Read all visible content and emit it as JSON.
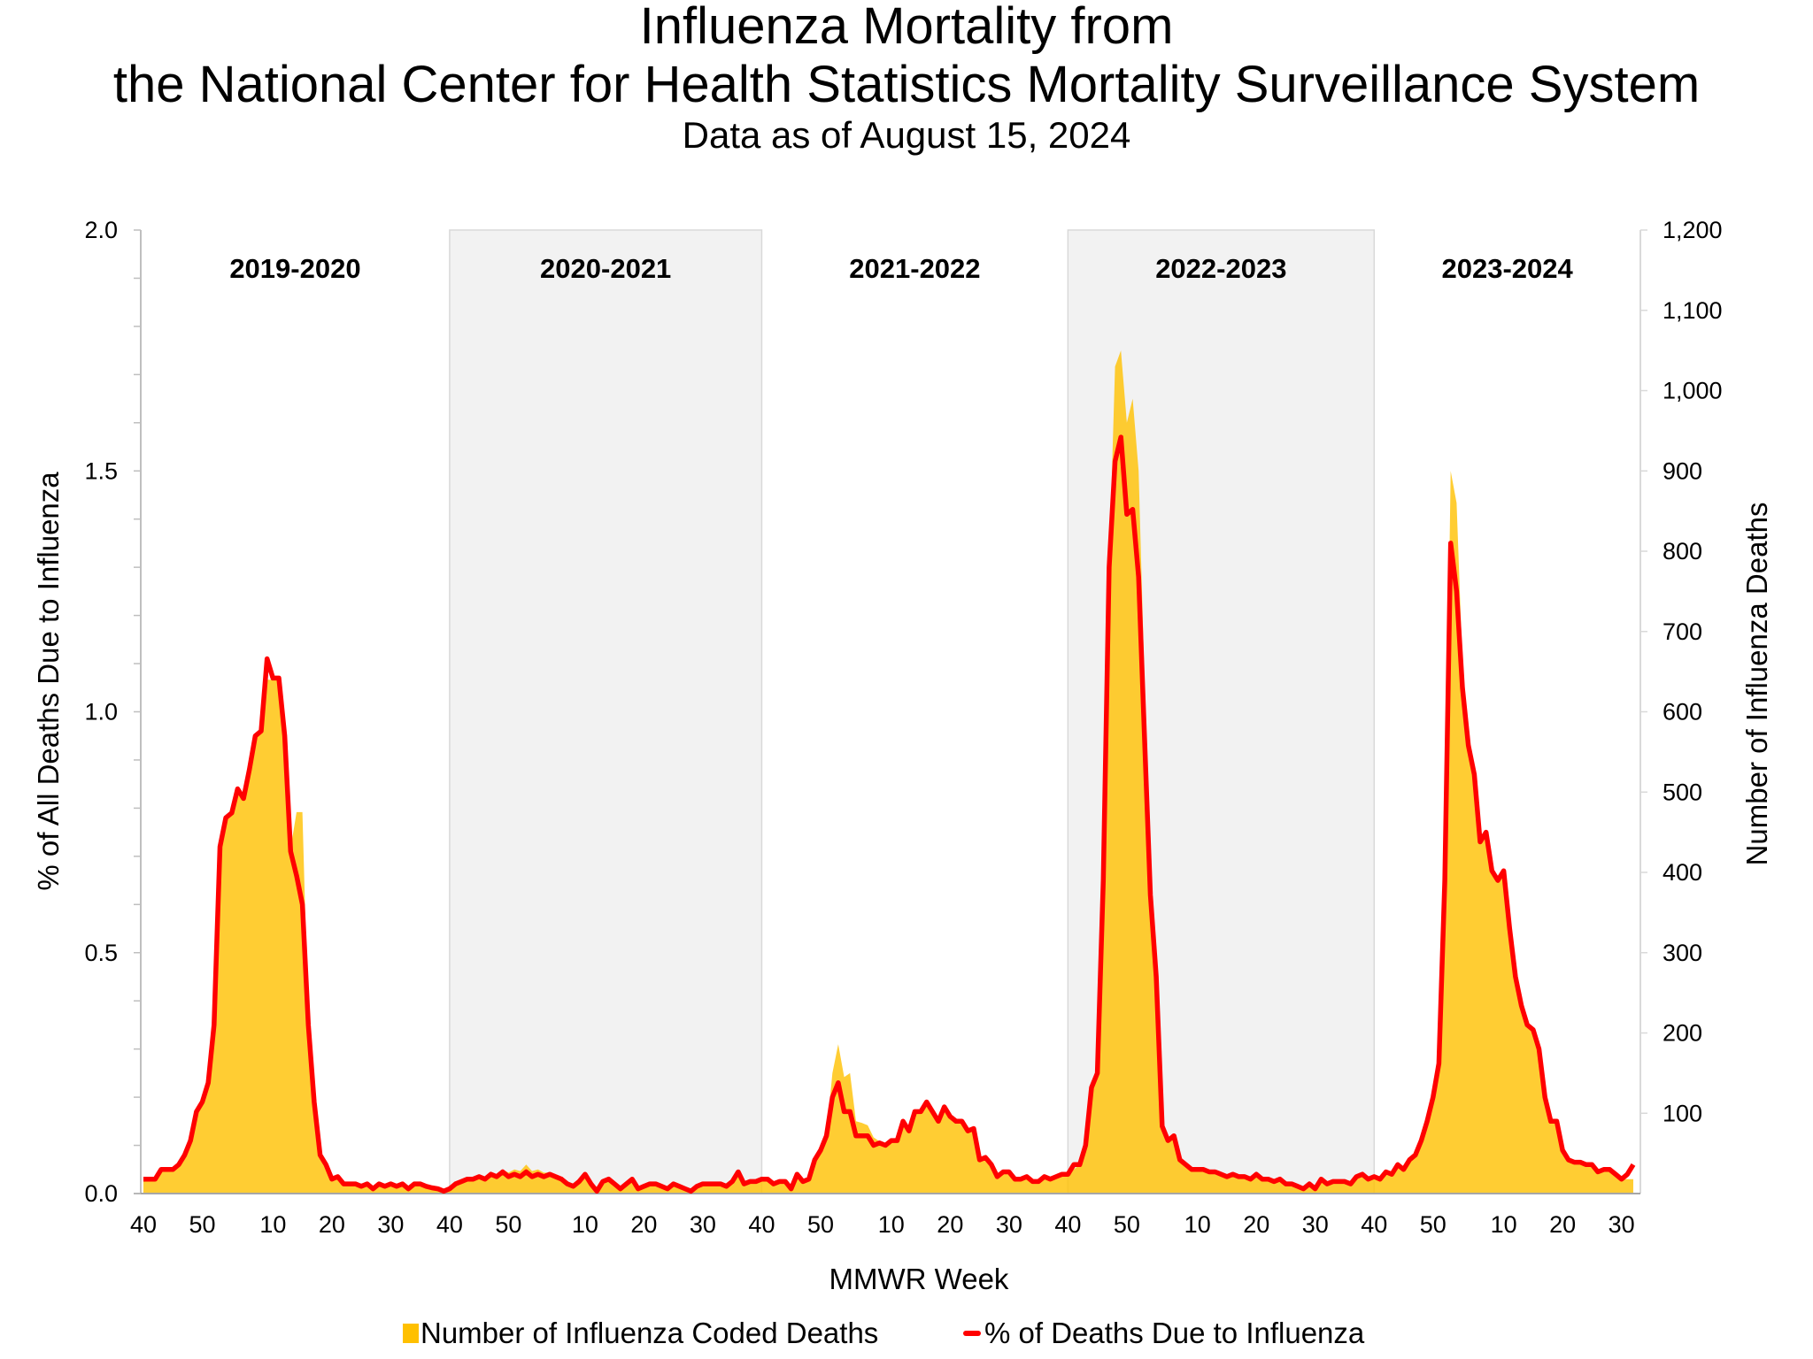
{
  "chart_data": {
    "type": "area+line",
    "title": "Influenza Mortality from",
    "title_line2": "the National Center for Health Statistics Mortality Surveillance System",
    "subtitle": "Data as of August 15, 2024",
    "xlabel": "MMWR Week",
    "ylabel_left": "% of All Deaths Due to Influenza",
    "ylabel_right": "Number of Influenza Deaths",
    "ylim_left": [
      0,
      2.0
    ],
    "ylim_right": [
      0,
      1200
    ],
    "y_ticks_left": [
      "0.0",
      "0.5",
      "1.0",
      "1.5",
      "2.0"
    ],
    "y_ticks_right": [
      "100",
      "200",
      "300",
      "400",
      "500",
      "600",
      "700",
      "800",
      "900",
      "1,000",
      "1,100",
      "1,200"
    ],
    "x_tick_labels": [
      "40",
      "50",
      "10",
      "20",
      "30",
      "40",
      "50",
      "10",
      "20",
      "30",
      "40",
      "50",
      "10",
      "20",
      "30",
      "40",
      "50",
      "10",
      "20",
      "30",
      "40",
      "50",
      "10",
      "20",
      "30"
    ],
    "grid": false,
    "legend_position": "bottom",
    "legend": [
      "Number of Influenza Coded Deaths",
      "% of Deaths Due to Influenza"
    ],
    "colors": {
      "deaths_area": "#FFC000",
      "percent_line": "#FF0000",
      "shade": "#F2F2F2"
    },
    "seasons": [
      {
        "label": "2019-2020",
        "shaded": false,
        "start_week": 40,
        "weeks_in_start_year": 52,
        "end_week": 39,
        "percent": [
          0.03,
          0.03,
          0.03,
          0.05,
          0.05,
          0.05,
          0.06,
          0.08,
          0.11,
          0.17,
          0.19,
          0.23,
          0.35,
          0.72,
          0.78,
          0.79,
          0.84,
          0.82,
          0.88,
          0.95,
          0.96,
          1.11,
          1.07,
          1.07,
          0.95,
          0.71,
          0.66,
          0.6,
          0.35,
          0.19,
          0.08,
          0.06,
          0.03,
          0.035,
          0.02,
          0.02,
          0.02,
          0.015,
          0.02,
          0.01,
          0.02,
          0.015,
          0.02,
          0.015,
          0.02,
          0.01,
          0.02,
          0.02,
          0.015,
          0.012,
          0.01,
          0.005
        ],
        "deaths": [
          15,
          15,
          18,
          30,
          30,
          30,
          36,
          48,
          66,
          100,
          114,
          138,
          210,
          430,
          470,
          475,
          500,
          490,
          530,
          570,
          580,
          640,
          640,
          640,
          570,
          430,
          475,
          475,
          210,
          115,
          48,
          36,
          18,
          20,
          12,
          12,
          12,
          9,
          12,
          6,
          12,
          9,
          12,
          9,
          12,
          6,
          12,
          12,
          9,
          7,
          6,
          3
        ]
      },
      {
        "label": "2020-2021",
        "shaded": true,
        "start_week": 40,
        "weeks_in_start_year": 53,
        "end_week": 39,
        "percent": [
          0.01,
          0.02,
          0.025,
          0.03,
          0.03,
          0.035,
          0.03,
          0.04,
          0.035,
          0.045,
          0.035,
          0.04,
          0.035,
          0.045,
          0.035,
          0.04,
          0.035,
          0.04,
          0.035,
          0.03,
          0.02,
          0.015,
          0.025,
          0.04,
          0.02,
          0.005,
          0.025,
          0.03,
          0.02,
          0.01,
          0.02,
          0.03,
          0.01,
          0.015,
          0.02,
          0.02,
          0.015,
          0.01,
          0.02,
          0.015,
          0.01,
          0.005,
          0.015,
          0.02,
          0.02,
          0.02,
          0.02,
          0.015,
          0.025,
          0.045,
          0.02,
          0.025,
          0.025
        ],
        "deaths": [
          6,
          12,
          15,
          18,
          18,
          21,
          20,
          26,
          24,
          30,
          26,
          30,
          28,
          36,
          28,
          30,
          26,
          26,
          22,
          20,
          12,
          9,
          15,
          24,
          12,
          3,
          15,
          18,
          12,
          6,
          12,
          18,
          6,
          9,
          12,
          12,
          9,
          6,
          12,
          9,
          6,
          3,
          9,
          12,
          12,
          12,
          12,
          9,
          15,
          27,
          12,
          15,
          15
        ]
      },
      {
        "label": "2021-2022",
        "shaded": false,
        "start_week": 40,
        "weeks_in_start_year": 52,
        "end_week": 39,
        "percent": [
          0.03,
          0.03,
          0.02,
          0.025,
          0.025,
          0.01,
          0.04,
          0.025,
          0.03,
          0.07,
          0.09,
          0.12,
          0.2,
          0.23,
          0.17,
          0.17,
          0.12,
          0.12,
          0.12,
          0.1,
          0.105,
          0.1,
          0.11,
          0.11,
          0.15,
          0.13,
          0.17,
          0.17,
          0.19,
          0.17,
          0.15,
          0.18,
          0.16,
          0.15,
          0.15,
          0.13,
          0.135,
          0.07,
          0.075,
          0.06,
          0.035,
          0.045,
          0.045,
          0.03,
          0.03,
          0.035,
          0.025,
          0.025,
          0.035,
          0.03,
          0.035,
          0.04
        ],
        "deaths": [
          18,
          18,
          12,
          15,
          15,
          6,
          24,
          15,
          18,
          42,
          54,
          72,
          150,
          186,
          145,
          150,
          90,
          88,
          85,
          70,
          65,
          62,
          66,
          70,
          90,
          80,
          102,
          104,
          114,
          102,
          90,
          108,
          96,
          90,
          90,
          78,
          81,
          42,
          45,
          36,
          21,
          27,
          27,
          18,
          18,
          21,
          15,
          15,
          21,
          18,
          21,
          24
        ]
      },
      {
        "label": "2022-2023",
        "shaded": true,
        "start_week": 40,
        "weeks_in_start_year": 52,
        "end_week": 39,
        "percent": [
          0.04,
          0.06,
          0.06,
          0.1,
          0.22,
          0.25,
          0.65,
          1.3,
          1.52,
          1.57,
          1.41,
          1.42,
          1.28,
          0.95,
          0.62,
          0.45,
          0.14,
          0.11,
          0.12,
          0.07,
          0.06,
          0.05,
          0.05,
          0.05,
          0.045,
          0.045,
          0.04,
          0.035,
          0.04,
          0.035,
          0.035,
          0.03,
          0.04,
          0.03,
          0.03,
          0.025,
          0.03,
          0.02,
          0.02,
          0.015,
          0.01,
          0.02,
          0.01,
          0.03,
          0.02,
          0.025,
          0.025,
          0.025,
          0.02,
          0.035,
          0.04,
          0.03
        ],
        "deaths": [
          24,
          30,
          36,
          60,
          130,
          150,
          400,
          780,
          1030,
          1050,
          960,
          990,
          900,
          640,
          380,
          270,
          84,
          66,
          72,
          42,
          36,
          30,
          30,
          30,
          27,
          27,
          24,
          21,
          24,
          21,
          21,
          18,
          24,
          18,
          18,
          15,
          18,
          12,
          12,
          9,
          6,
          12,
          6,
          18,
          12,
          15,
          15,
          15,
          12,
          21,
          24,
          18
        ]
      },
      {
        "label": "2023-2024",
        "shaded": false,
        "start_week": 40,
        "weeks_in_start_year": 52,
        "end_week": 32,
        "percent": [
          0.035,
          0.03,
          0.045,
          0.04,
          0.06,
          0.05,
          0.07,
          0.08,
          0.11,
          0.15,
          0.2,
          0.27,
          0.65,
          1.35,
          1.25,
          1.05,
          0.93,
          0.87,
          0.73,
          0.75,
          0.67,
          0.65,
          0.67,
          0.55,
          0.45,
          0.39,
          0.35,
          0.34,
          0.3,
          0.2,
          0.15,
          0.15,
          0.09,
          0.07,
          0.065,
          0.065,
          0.06,
          0.06,
          0.045,
          0.05,
          0.05,
          0.04,
          0.03,
          0.04,
          0.06
        ],
        "deaths": [
          21,
          18,
          27,
          24,
          36,
          30,
          42,
          48,
          66,
          90,
          120,
          162,
          390,
          900,
          860,
          660,
          560,
          520,
          440,
          450,
          400,
          390,
          400,
          330,
          270,
          234,
          210,
          204,
          180,
          120,
          90,
          90,
          54,
          42,
          39,
          39,
          36,
          36,
          27,
          30,
          30,
          24,
          18,
          18,
          18
        ]
      }
    ]
  }
}
